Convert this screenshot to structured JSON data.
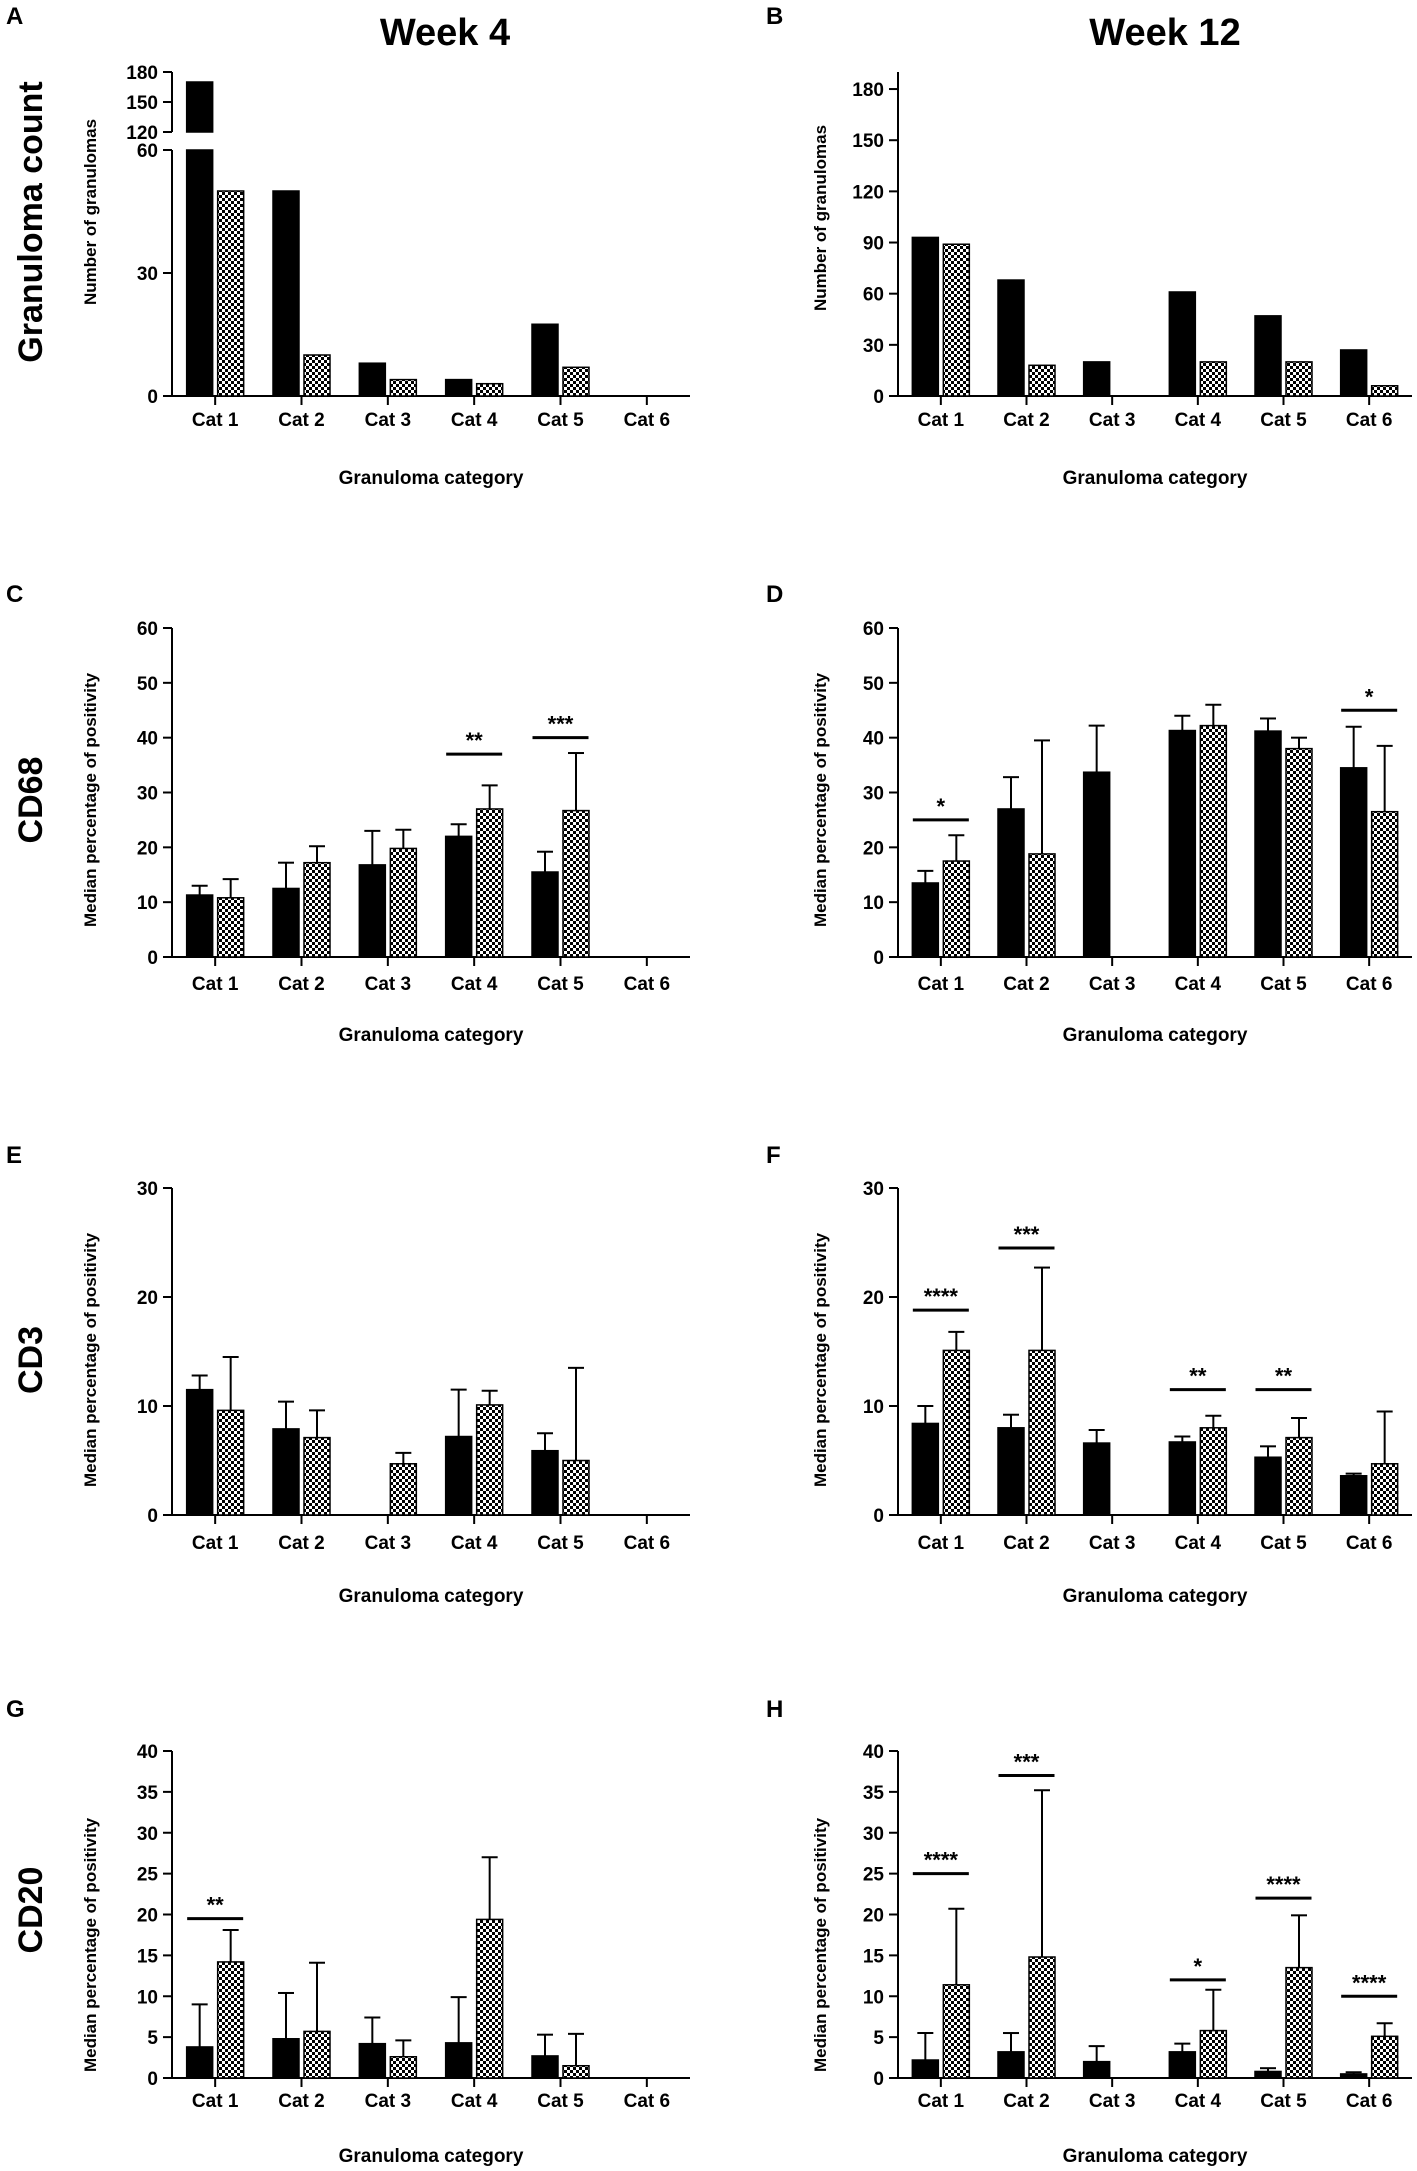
{
  "colors": {
    "bar_solid": "#000000",
    "bar_check_a": "#000000",
    "bar_check_b": "#ffffff"
  },
  "column_titles": [
    "Week 4",
    "Week 12"
  ],
  "row_titles": [
    "Granuloma count",
    "CD68",
    "CD3",
    "CD20"
  ],
  "chart_data": [
    {
      "panel": "A",
      "type": "bar",
      "week": "Week 4",
      "row": "Granuloma count",
      "xlabel": "Granuloma category",
      "ylabel": "Number of granulomas",
      "categories": [
        "Cat 1",
        "Cat 2",
        "Cat 3",
        "Cat 4",
        "Cat 5",
        "Cat 6"
      ],
      "axis_break": true,
      "ylim_lower": [
        0,
        60
      ],
      "yticks_lower": [
        0,
        30,
        60
      ],
      "ylim_upper": [
        120,
        180
      ],
      "yticks_upper": [
        120,
        150,
        180
      ],
      "series": [
        {
          "name": "solid",
          "values": [
            170,
            50,
            8,
            4,
            17.5,
            0
          ]
        },
        {
          "name": "checkered",
          "values": [
            50,
            10,
            4,
            3,
            7,
            0
          ]
        }
      ],
      "significance": []
    },
    {
      "panel": "B",
      "type": "bar",
      "week": "Week 12",
      "row": "Granuloma count",
      "xlabel": "Granuloma category",
      "ylabel": "Number of granulomas",
      "categories": [
        "Cat 1",
        "Cat 2",
        "Cat 3",
        "Cat 4",
        "Cat 5",
        "Cat 6"
      ],
      "ylim": [
        0,
        190
      ],
      "yticks": [
        0,
        30,
        60,
        90,
        120,
        150,
        180
      ],
      "series": [
        {
          "name": "solid",
          "values": [
            93,
            68,
            20,
            61,
            47,
            27
          ]
        },
        {
          "name": "checkered",
          "values": [
            89,
            18,
            0,
            20,
            20,
            6
          ]
        }
      ],
      "significance": []
    },
    {
      "panel": "C",
      "type": "bar",
      "week": "Week 4",
      "row": "CD68",
      "xlabel": "Granuloma category",
      "ylabel": "Median percentage of positivity",
      "categories": [
        "Cat 1",
        "Cat 2",
        "Cat 3",
        "Cat 4",
        "Cat 5",
        "Cat 6"
      ],
      "ylim": [
        0,
        60
      ],
      "yticks": [
        0,
        10,
        20,
        30,
        40,
        50,
        60
      ],
      "series": [
        {
          "name": "solid",
          "values": [
            11.3,
            12.5,
            16.8,
            22,
            15.5,
            0
          ],
          "errors": [
            13,
            17.2,
            23,
            24.2,
            19.2,
            null
          ]
        },
        {
          "name": "checkered",
          "values": [
            10.8,
            17.2,
            19.8,
            27,
            26.7,
            0
          ],
          "errors": [
            14.2,
            20.2,
            23.2,
            31.3,
            37.2,
            null
          ]
        }
      ],
      "significance": [
        {
          "category": 3,
          "label": "**",
          "y": 37
        },
        {
          "category": 4,
          "label": "***",
          "y": 40
        }
      ]
    },
    {
      "panel": "D",
      "type": "bar",
      "week": "Week 12",
      "row": "CD68",
      "xlabel": "Granuloma category",
      "ylabel": "Median percentage of positivity",
      "categories": [
        "Cat 1",
        "Cat 2",
        "Cat 3",
        "Cat 4",
        "Cat 5",
        "Cat 6"
      ],
      "ylim": [
        0,
        60
      ],
      "yticks": [
        0,
        10,
        20,
        30,
        40,
        50,
        60
      ],
      "series": [
        {
          "name": "solid",
          "values": [
            13.5,
            27,
            33.7,
            41.3,
            41.2,
            34.5
          ],
          "errors": [
            15.7,
            32.8,
            42.2,
            44,
            43.5,
            42
          ]
        },
        {
          "name": "checkered",
          "values": [
            17.5,
            18.8,
            0,
            42.2,
            38,
            26.5
          ],
          "errors": [
            22.2,
            39.5,
            null,
            46,
            40,
            38.5
          ]
        }
      ],
      "significance": [
        {
          "category": 0,
          "label": "*",
          "y": 25
        },
        {
          "category": 5,
          "label": "*",
          "y": 45
        }
      ]
    },
    {
      "panel": "E",
      "type": "bar",
      "week": "Week 4",
      "row": "CD3",
      "xlabel": "Granuloma category",
      "ylabel": "Median percentage of positivity",
      "categories": [
        "Cat 1",
        "Cat 2",
        "Cat 3",
        "Cat 4",
        "Cat 5",
        "Cat 6"
      ],
      "ylim": [
        0,
        30
      ],
      "yticks": [
        0,
        10,
        20,
        30
      ],
      "series": [
        {
          "name": "solid",
          "values": [
            11.5,
            7.9,
            0,
            7.2,
            5.9,
            0
          ],
          "errors": [
            12.8,
            10.4,
            null,
            11.5,
            7.5,
            null
          ]
        },
        {
          "name": "checkered",
          "values": [
            9.6,
            7.1,
            4.7,
            10.1,
            5,
            0
          ],
          "errors": [
            14.5,
            9.6,
            5.7,
            11.4,
            13.5,
            null
          ]
        }
      ],
      "significance": []
    },
    {
      "panel": "F",
      "type": "bar",
      "week": "Week 12",
      "row": "CD3",
      "xlabel": "Granuloma category",
      "ylabel": "Median percentage of positivity",
      "categories": [
        "Cat 1",
        "Cat 2",
        "Cat 3",
        "Cat 4",
        "Cat 5",
        "Cat 6"
      ],
      "ylim": [
        0,
        30
      ],
      "yticks": [
        0,
        10,
        20,
        30
      ],
      "series": [
        {
          "name": "solid",
          "values": [
            8.4,
            8,
            6.6,
            6.7,
            5.3,
            3.6
          ],
          "errors": [
            10,
            9.2,
            7.8,
            7.2,
            6.3,
            3.8
          ]
        },
        {
          "name": "checkered",
          "values": [
            15.1,
            15.1,
            0,
            8,
            7.1,
            4.7
          ],
          "errors": [
            16.8,
            22.7,
            null,
            9.1,
            8.9,
            9.5
          ]
        }
      ],
      "significance": [
        {
          "category": 0,
          "label": "****",
          "y": 18.8
        },
        {
          "category": 1,
          "label": "***",
          "y": 24.5
        },
        {
          "category": 3,
          "label": "**",
          "y": 11.5
        },
        {
          "category": 4,
          "label": "**",
          "y": 11.5
        }
      ]
    },
    {
      "panel": "G",
      "type": "bar",
      "week": "Week 4",
      "row": "CD20",
      "xlabel": "Granuloma category",
      "ylabel": "Median percentage of positivity",
      "categories": [
        "Cat 1",
        "Cat 2",
        "Cat 3",
        "Cat 4",
        "Cat 5",
        "Cat 6"
      ],
      "ylim": [
        0,
        40
      ],
      "yticks": [
        0,
        5,
        10,
        15,
        20,
        25,
        30,
        35,
        40
      ],
      "series": [
        {
          "name": "solid",
          "values": [
            3.8,
            4.8,
            4.2,
            4.3,
            2.7,
            0
          ],
          "errors": [
            9,
            10.4,
            7.4,
            9.9,
            5.3,
            null
          ]
        },
        {
          "name": "checkered",
          "values": [
            14.2,
            5.7,
            2.6,
            19.4,
            1.5,
            0
          ],
          "errors": [
            18.1,
            14.1,
            4.6,
            27,
            5.4,
            null
          ]
        }
      ],
      "significance": [
        {
          "category": 0,
          "label": "**",
          "y": 19.5
        }
      ]
    },
    {
      "panel": "H",
      "type": "bar",
      "week": "Week 12",
      "row": "CD20",
      "xlabel": "Granuloma category",
      "ylabel": "Median percentage of positivity",
      "categories": [
        "Cat 1",
        "Cat 2",
        "Cat 3",
        "Cat 4",
        "Cat 5",
        "Cat 6"
      ],
      "ylim": [
        0,
        40
      ],
      "yticks": [
        0,
        5,
        10,
        15,
        20,
        25,
        30,
        35,
        40
      ],
      "series": [
        {
          "name": "solid",
          "values": [
            2.2,
            3.2,
            2,
            3.2,
            0.8,
            0.5
          ],
          "errors": [
            5.5,
            5.5,
            3.9,
            4.2,
            1.2,
            0.7
          ]
        },
        {
          "name": "checkered",
          "values": [
            11.4,
            14.8,
            0,
            5.8,
            13.5,
            5.1
          ],
          "errors": [
            20.7,
            35.2,
            null,
            10.8,
            19.9,
            6.7
          ]
        }
      ],
      "significance": [
        {
          "category": 0,
          "label": "****",
          "y": 25
        },
        {
          "category": 1,
          "label": "***",
          "y": 37
        },
        {
          "category": 3,
          "label": "*",
          "y": 12
        },
        {
          "category": 4,
          "label": "****",
          "y": 22
        },
        {
          "category": 5,
          "label": "****",
          "y": 10
        }
      ]
    }
  ]
}
